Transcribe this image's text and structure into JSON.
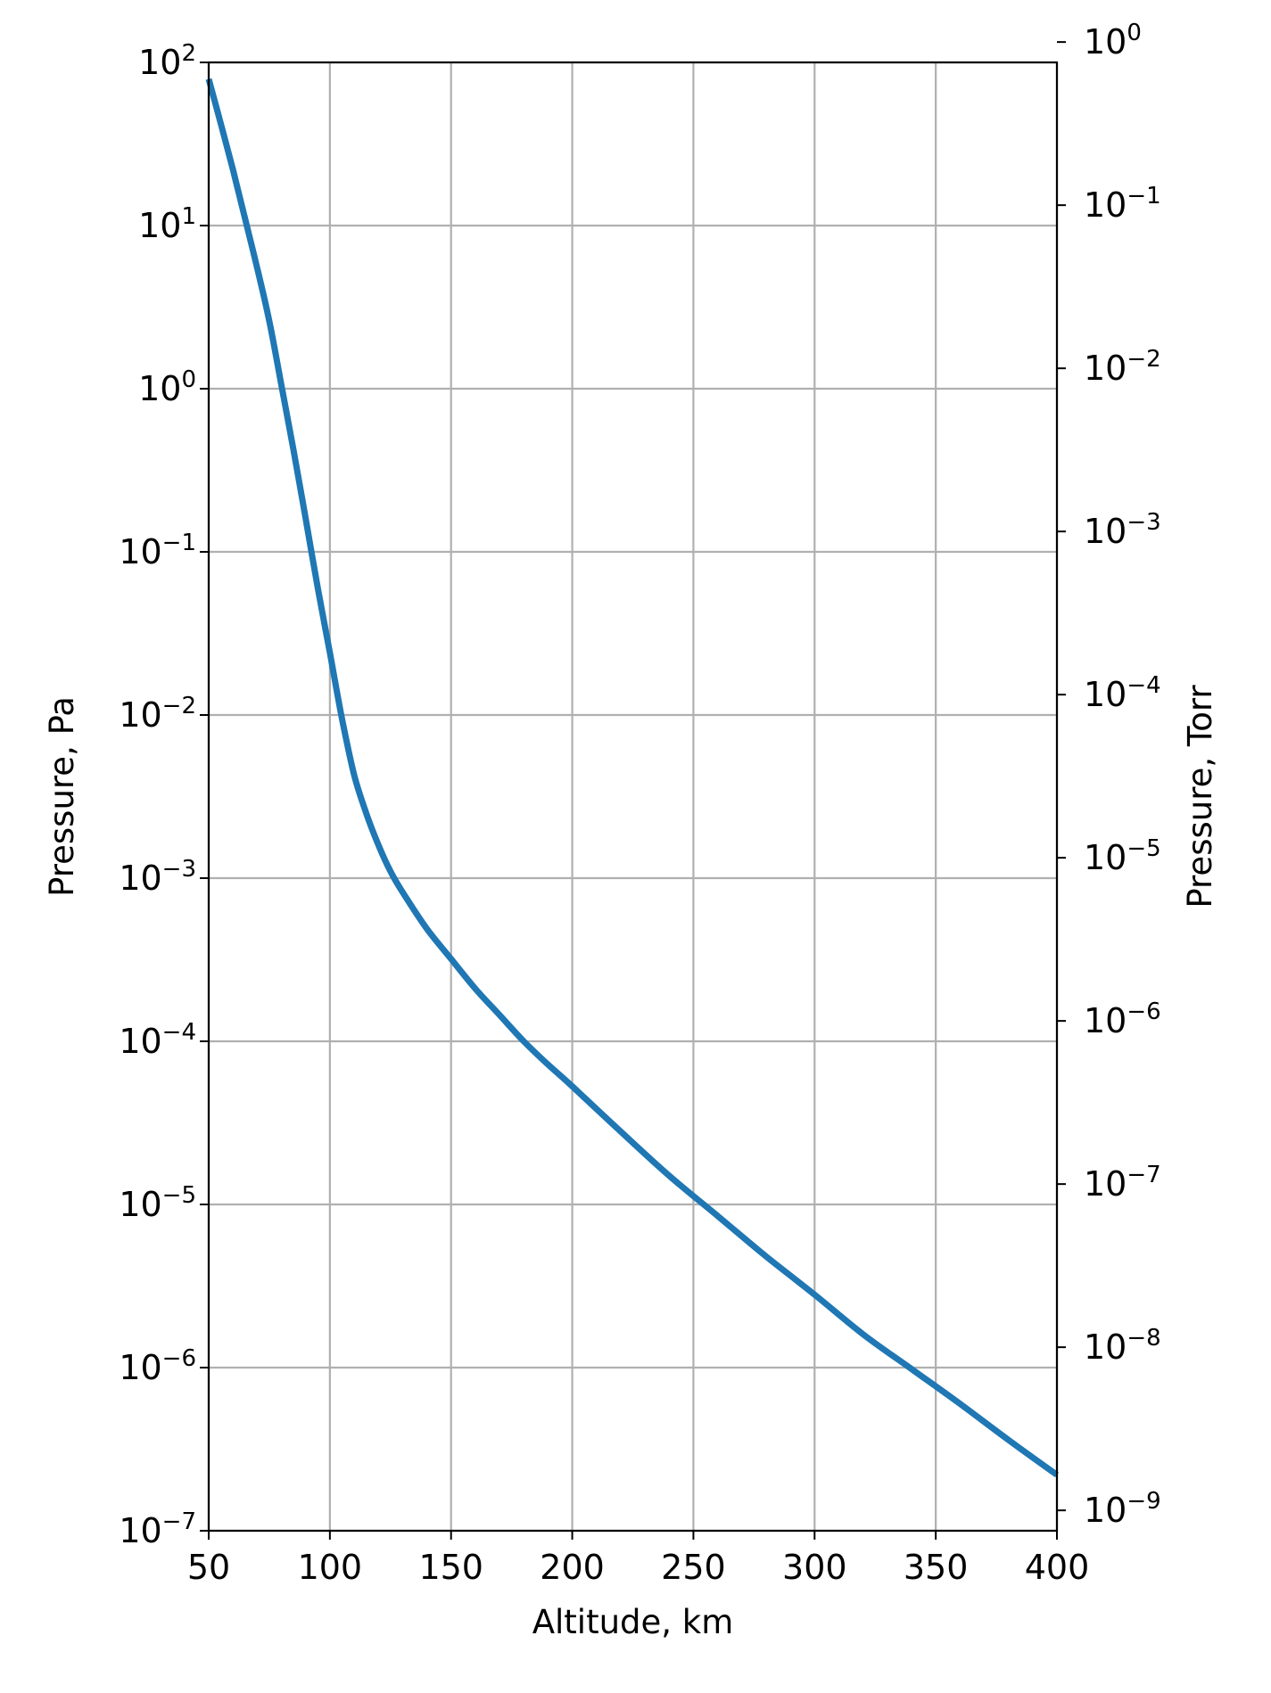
{
  "chart_data": {
    "type": "line",
    "title": "",
    "xlabel": "Altitude, km",
    "ylabel": "Pressure, Pa",
    "ylabel_right": "Pressure, Torr",
    "xlim": [
      50,
      400
    ],
    "ylim": [
      1e-07,
      100
    ],
    "yscale": "log",
    "ylim_right": [
      7.5e-10,
      0.75
    ],
    "yscale_right": "log",
    "grid": true,
    "x_ticks": [
      "50",
      "100",
      "150",
      "200",
      "250",
      "300",
      "350",
      "400"
    ],
    "y_ticks": [
      {
        "base": "10",
        "exp": "2"
      },
      {
        "base": "10",
        "exp": "1"
      },
      {
        "base": "10",
        "exp": "0"
      },
      {
        "base": "10",
        "exp": "−1"
      },
      {
        "base": "10",
        "exp": "−2"
      },
      {
        "base": "10",
        "exp": "−3"
      },
      {
        "base": "10",
        "exp": "−4"
      },
      {
        "base": "10",
        "exp": "−5"
      },
      {
        "base": "10",
        "exp": "−6"
      },
      {
        "base": "10",
        "exp": "−7"
      }
    ],
    "y_ticks_right": [
      {
        "base": "10",
        "exp": "0"
      },
      {
        "base": "10",
        "exp": "−1"
      },
      {
        "base": "10",
        "exp": "−2"
      },
      {
        "base": "10",
        "exp": "−3"
      },
      {
        "base": "10",
        "exp": "−4"
      },
      {
        "base": "10",
        "exp": "−5"
      },
      {
        "base": "10",
        "exp": "−6"
      },
      {
        "base": "10",
        "exp": "−7"
      },
      {
        "base": "10",
        "exp": "−8"
      },
      {
        "base": "10",
        "exp": "−9"
      }
    ],
    "series": [
      {
        "color": "#1f77b4",
        "x": [
          50,
          55,
          60,
          65,
          70,
          75,
          80,
          85,
          90,
          95,
          100,
          105,
          110,
          115,
          120,
          125,
          130,
          140,
          150,
          160,
          170,
          180,
          190,
          200,
          220,
          240,
          260,
          280,
          300,
          320,
          340,
          360,
          380,
          400
        ],
        "y": [
          79,
          42,
          22,
          11,
          5.5,
          2.6,
          1.05,
          0.42,
          0.16,
          0.06,
          0.024,
          0.0095,
          0.0043,
          0.0025,
          0.0016,
          0.0011,
          0.00082,
          0.00049,
          0.00032,
          0.00021,
          0.000145,
          0.0001,
          7.2e-05,
          5.3e-05,
          2.8e-05,
          1.5e-05,
          8.5e-06,
          4.8e-06,
          2.8e-06,
          1.6e-06,
          9.8e-07,
          6e-07,
          3.6e-07,
          2.2e-07
        ]
      }
    ]
  }
}
